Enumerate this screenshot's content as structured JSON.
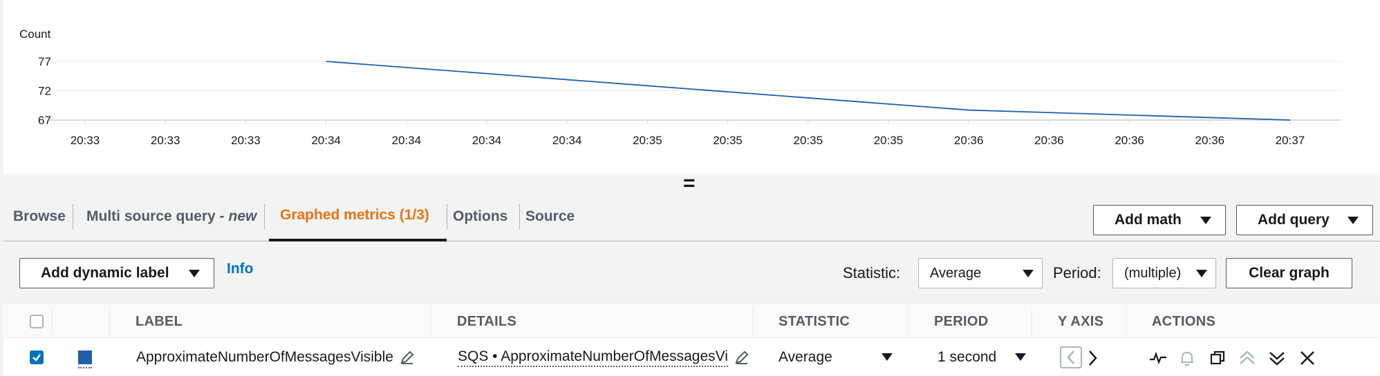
{
  "chart_data": {
    "type": "line",
    "ylabel": "Count",
    "yticks": [
      67,
      72,
      77
    ],
    "ylim": [
      67,
      77
    ],
    "xtick_labels": [
      "20:33",
      "20:33",
      "20:33",
      "20:34",
      "20:34",
      "20:34",
      "20:34",
      "20:35",
      "20:35",
      "20:35",
      "20:35",
      "20:36",
      "20:36",
      "20:36",
      "20:36",
      "20:37"
    ],
    "series": [
      {
        "color": "#1f5fa8",
        "points": [
          {
            "tick_index": 3,
            "y": 77
          },
          {
            "tick_index": 11,
            "y": 68.7
          },
          {
            "tick_index": 15,
            "y": 67
          }
        ]
      }
    ],
    "grid": true
  },
  "resize_handle": "=",
  "tabs": [
    {
      "label": "Browse"
    },
    {
      "label": "Multi source query - ",
      "suffix": "new"
    },
    {
      "label": "Graphed metrics (1/3)",
      "active": true
    },
    {
      "label": "Options"
    },
    {
      "label": "Source"
    }
  ],
  "toolbar": {
    "add_math": "Add math",
    "add_query": "Add query",
    "add_dynamic_label": "Add dynamic label",
    "info": "Info",
    "statistic_label": "Statistic:",
    "statistic_value": "Average",
    "period_label": "Period:",
    "period_value": "(multiple)",
    "clear_graph": "Clear graph"
  },
  "table": {
    "headers": [
      "LABEL",
      "DETAILS",
      "STATISTIC",
      "PERIOD",
      "Y AXIS",
      "ACTIONS"
    ],
    "rows": [
      {
        "checked": true,
        "color": "#1f5fa8",
        "label": "ApproximateNumberOfMessagesVisible",
        "details": "SQS • ApproximateNumberOfMessagesVi",
        "statistic": "Average",
        "period": "1 second"
      }
    ]
  },
  "icons": {
    "row_actions": [
      "graph-line-icon",
      "alarm-bell-icon",
      "duplicate-icon",
      "move-up-icon",
      "move-down-icon",
      "close-icon"
    ],
    "y_axis": [
      "y-axis-left-icon",
      "y-axis-right-icon"
    ]
  }
}
